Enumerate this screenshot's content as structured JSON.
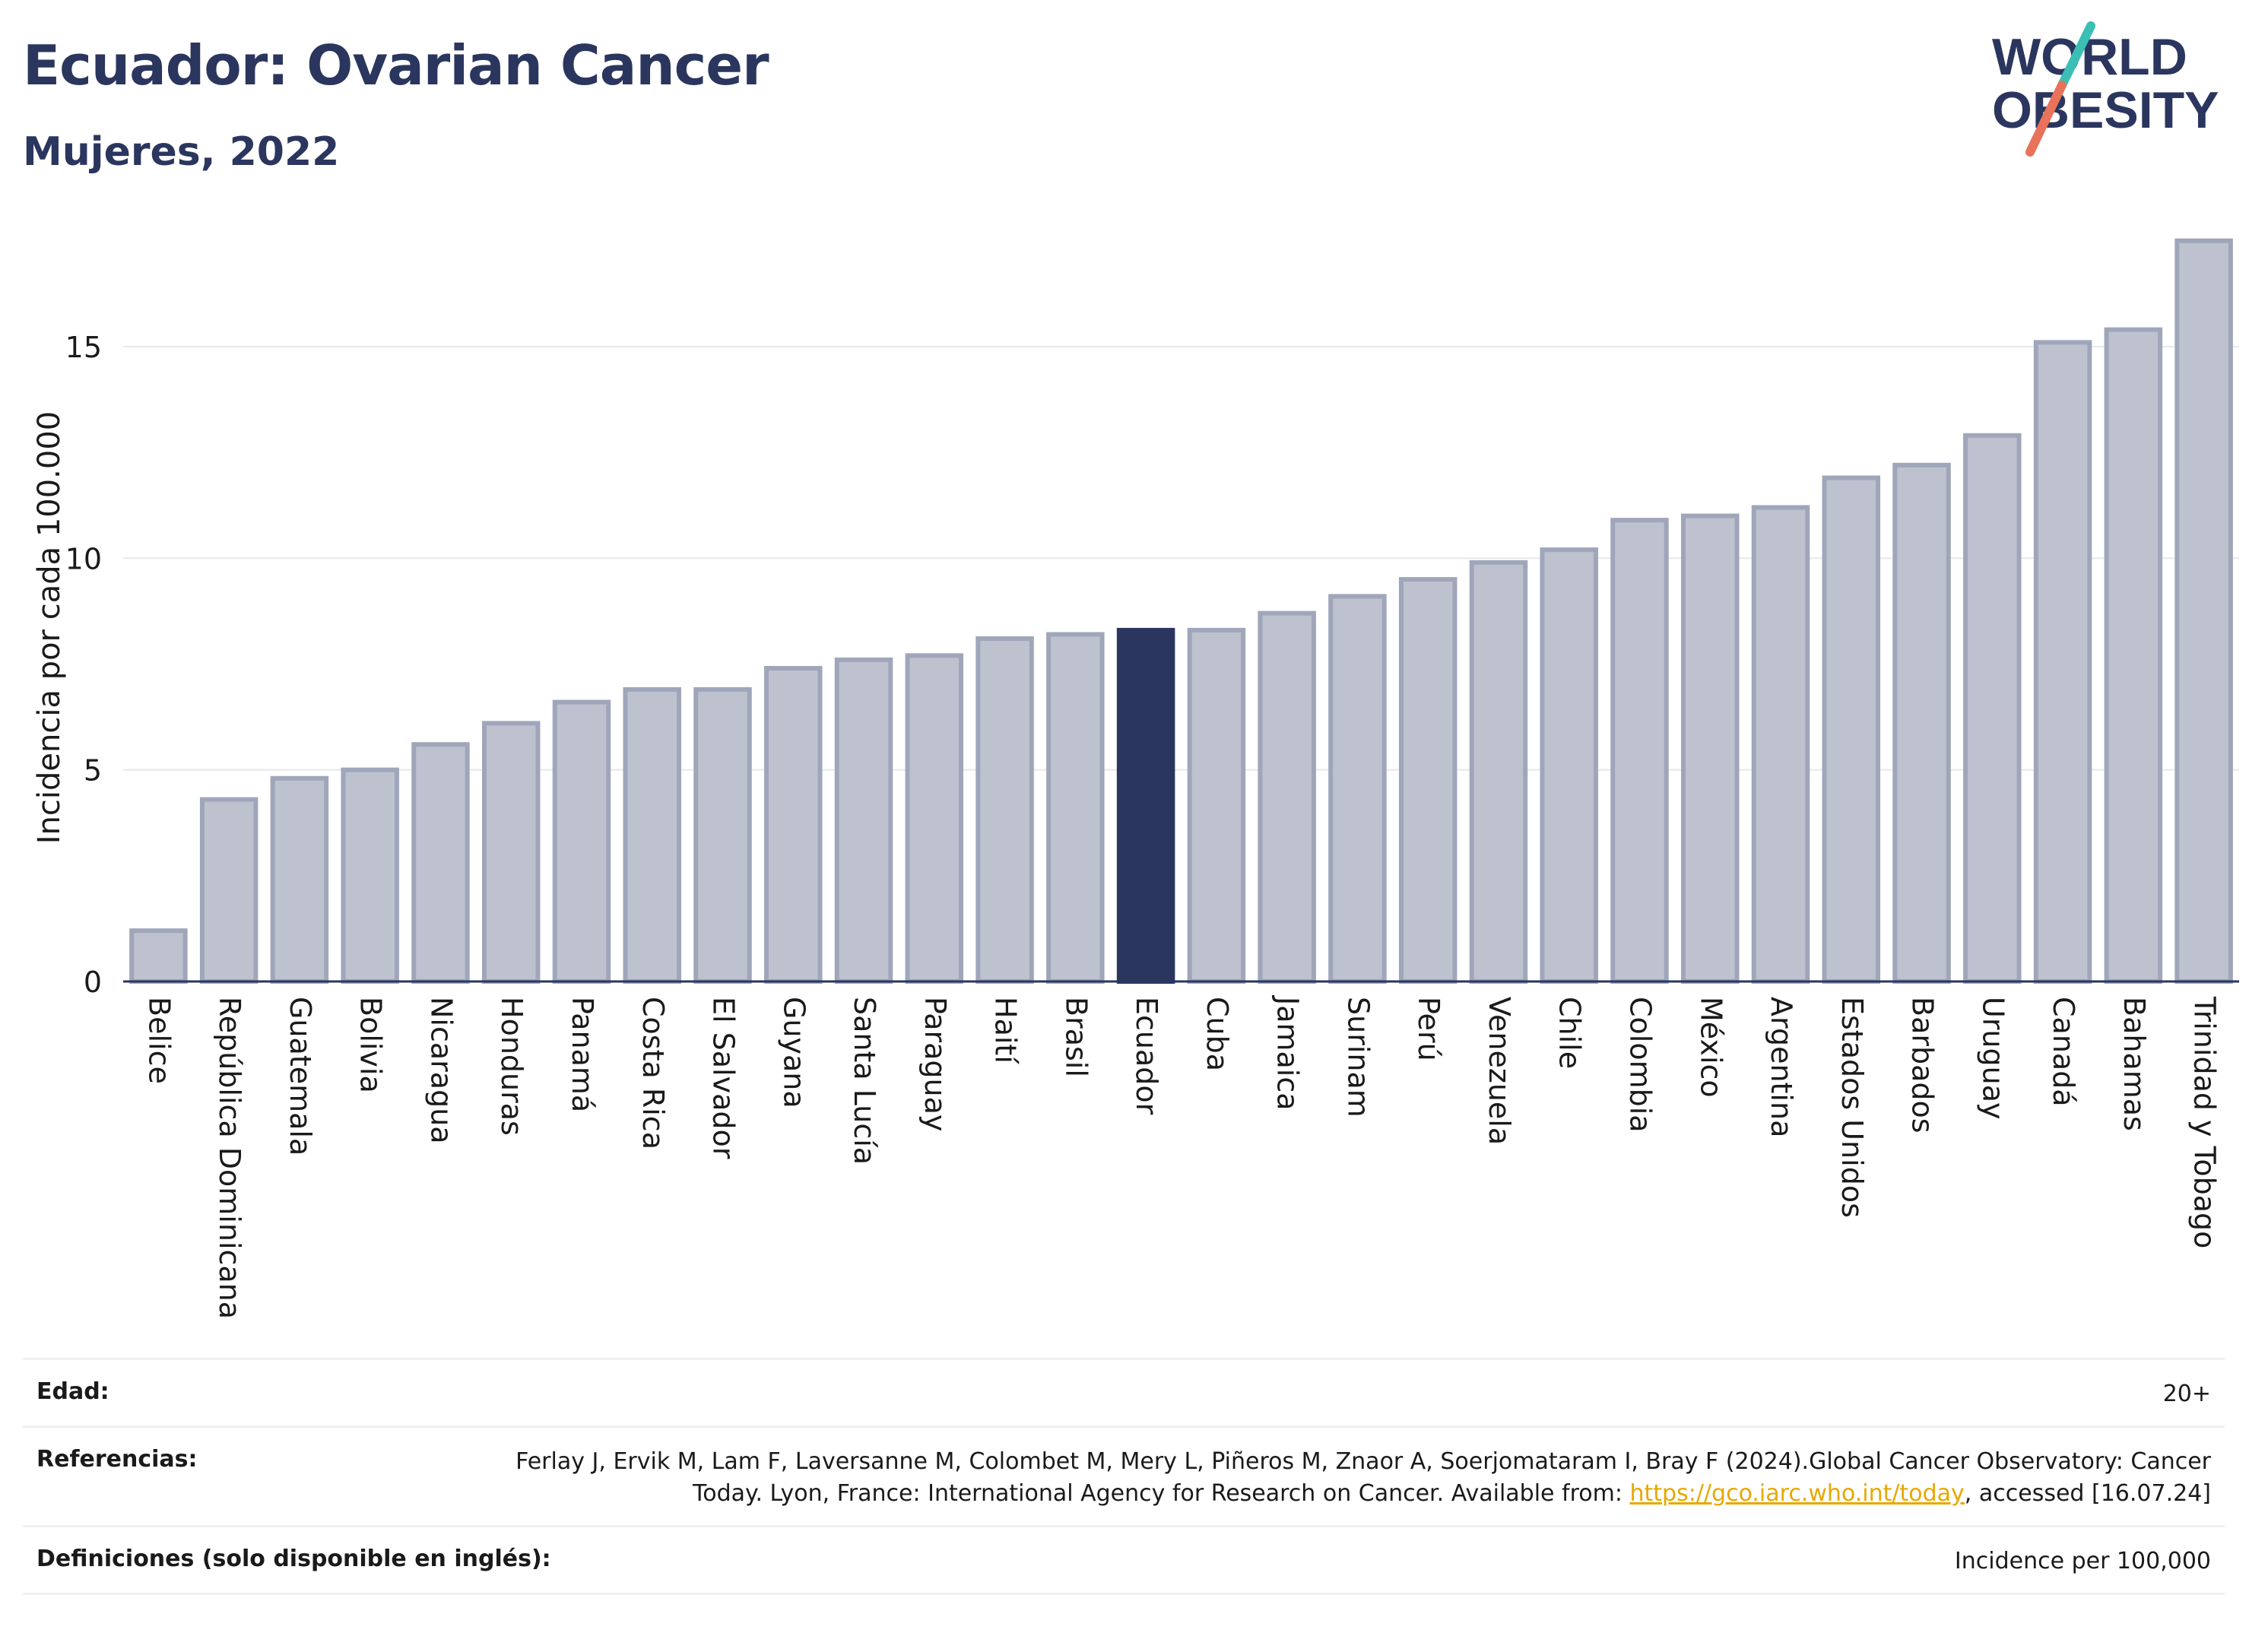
{
  "header": {
    "title": "Ecuador: Ovarian Cancer",
    "subtitle": "Mujeres, 2022"
  },
  "logo": {
    "line1": "WORLD",
    "line2": "OBESITY",
    "color": "#2b365f",
    "slash_colors": [
      "#e8735a",
      "#3bbfb5"
    ]
  },
  "colors": {
    "bar": "#bec2cf",
    "bar_border": "#a0a6ba",
    "highlight": "#2b365f",
    "grid": "#e6e8ec",
    "axis": "#2b365f"
  },
  "chart_data": {
    "type": "bar",
    "title": "",
    "xlabel": "",
    "ylabel": "Incidencia por cada 100.000",
    "ylim": [
      0,
      17.8
    ],
    "yticks": [
      0,
      5,
      10,
      15
    ],
    "grid": true,
    "highlight": "Ecuador",
    "categories": [
      "Belice",
      "República Dominicana",
      "Guatemala",
      "Bolivia",
      "Nicaragua",
      "Honduras",
      "Panamá",
      "Costa Rica",
      "El Salvador",
      "Guyana",
      "Santa Lucía",
      "Paraguay",
      "Haití",
      "Brasil",
      "Ecuador",
      "Cuba",
      "Jamaica",
      "Surinam",
      "Perú",
      "Venezuela",
      "Chile",
      "Colombia",
      "México",
      "Argentina",
      "Estados Unidos",
      "Barbados",
      "Uruguay",
      "Canadá",
      "Bahamas",
      "Trinidad y Tobago"
    ],
    "values": [
      1.2,
      4.3,
      4.8,
      5.0,
      5.6,
      6.1,
      6.6,
      6.9,
      6.9,
      7.4,
      7.6,
      7.7,
      8.1,
      8.2,
      8.3,
      8.3,
      8.7,
      9.1,
      9.5,
      9.9,
      10.2,
      10.9,
      11.0,
      11.2,
      11.9,
      12.2,
      12.9,
      15.1,
      15.4,
      17.5
    ]
  },
  "footer": {
    "age_label": "Edad:",
    "age_value": "20+",
    "refs_label": "Referencias:",
    "refs_text": "Ferlay J, Ervik M, Lam F, Laversanne M, Colombet M, Mery L, Piñeros M, Znaor A, Soerjomataram I, Bray F (2024).Global Cancer Observatory: Cancer Today. Lyon, France: International Agency for Research on Cancer. Available from: ",
    "refs_link": "https://gco.iarc.who.int/today",
    "refs_tail": ", accessed [16.07.24]",
    "defs_label": "Definiciones (solo disponible en inglés):",
    "defs_value": "Incidence per 100,000"
  }
}
